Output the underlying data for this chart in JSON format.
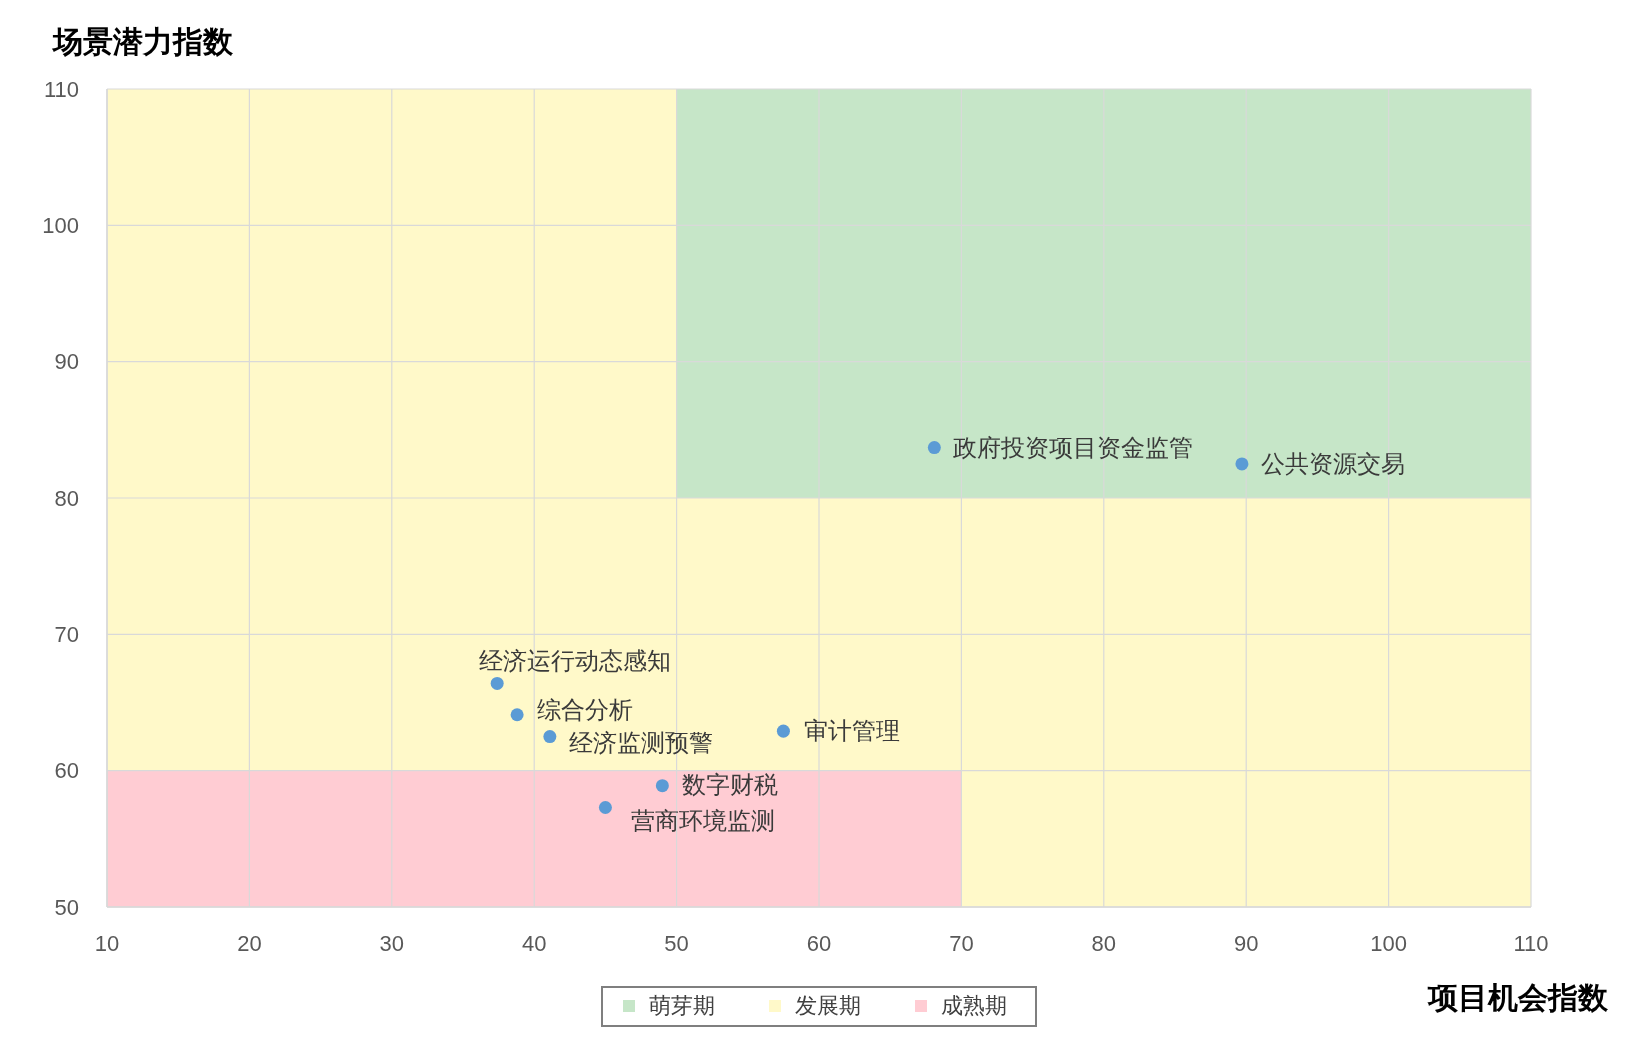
{
  "chart_data": {
    "type": "scatter",
    "xlabel": "项目机会指数",
    "ylabel": "场景潜力指数",
    "xlim": [
      10,
      110
    ],
    "xticks": [
      10,
      20,
      30,
      40,
      50,
      60,
      70,
      80,
      90,
      100,
      110
    ],
    "ylim": [
      50,
      110
    ],
    "yticks": [
      50,
      60,
      70,
      80,
      90,
      100,
      110
    ],
    "grid": true,
    "legend": "bottom",
    "series": [
      {
        "name": "萌芽期",
        "type": "area",
        "color": "#c6e6c8",
        "x": [
          50,
          110
        ],
        "values": [
          110,
          110
        ]
      },
      {
        "name": "发展期",
        "type": "area",
        "color": "#fff9c9",
        "x": [
          10,
          50,
          50,
          110
        ],
        "values": [
          110,
          110,
          80,
          80
        ]
      },
      {
        "name": "成熟期",
        "type": "area",
        "color": "#ffccd3",
        "x": [
          10,
          70
        ],
        "values": [
          60,
          60
        ]
      },
      {
        "type": "scatter",
        "color": "#5b9bd5",
        "marker": "circle",
        "x": [
          68.1,
          89.7,
          37.4,
          38.8,
          41.1,
          57.5,
          49.0,
          45.0
        ],
        "values": [
          83.7,
          82.5,
          66.4,
          64.1,
          62.5,
          62.9,
          58.9,
          57.3
        ]
      }
    ],
    "annotations": [
      {
        "text": "政府投资项目资金监管",
        "x": 68.1,
        "y": 83.7
      },
      {
        "text": "公共资源交易",
        "x": 89.7,
        "y": 82.5
      },
      {
        "text": "经济运行动态感知",
        "x": 37.4,
        "y": 66.4
      },
      {
        "text": "综合分析",
        "x": 38.8,
        "y": 64.1
      },
      {
        "text": "经济监测预警",
        "x": 41.1,
        "y": 62.5
      },
      {
        "text": "审计管理",
        "x": 57.5,
        "y": 62.9
      },
      {
        "text": "数字财税",
        "x": 49.0,
        "y": 58.9
      },
      {
        "text": "营商环境监测",
        "x": 45.0,
        "y": 57.3
      }
    ]
  }
}
